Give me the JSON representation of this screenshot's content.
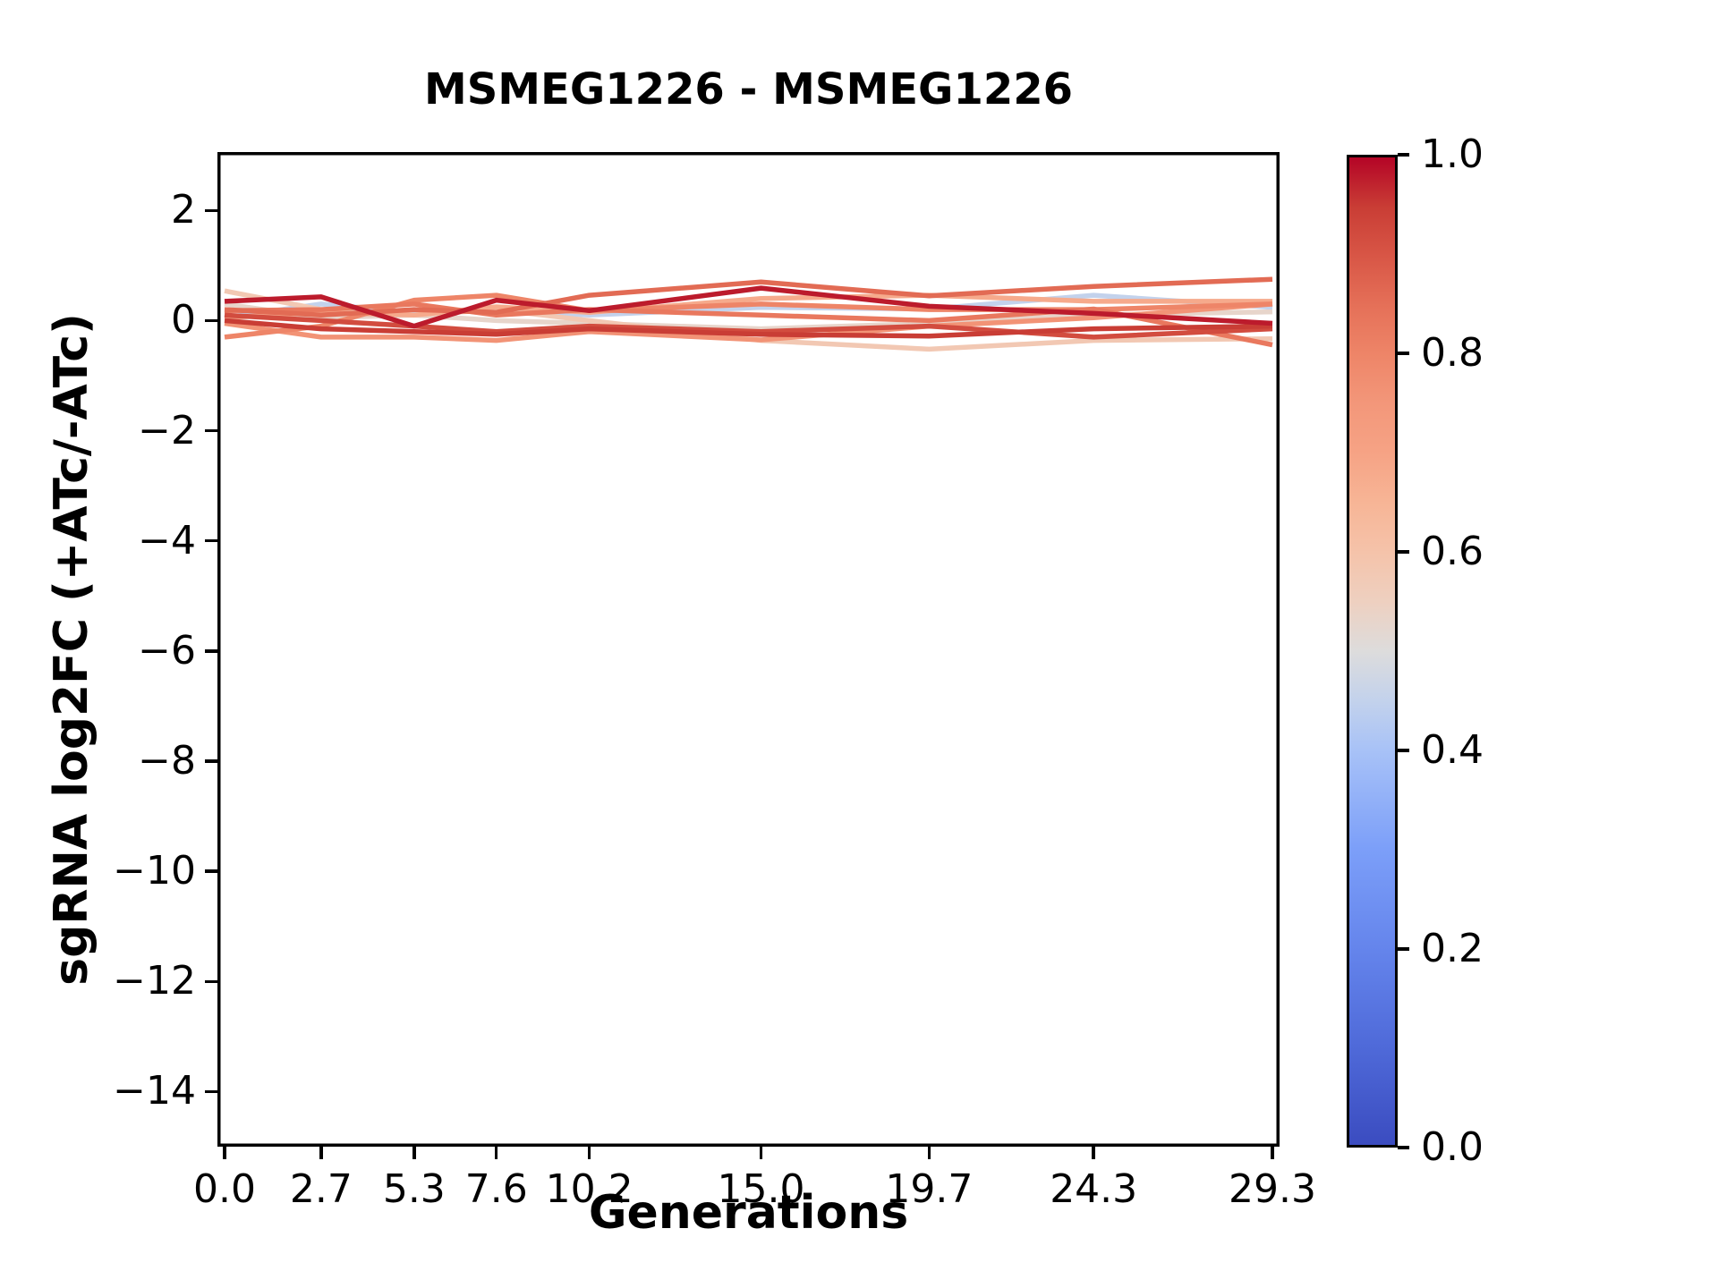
{
  "chart_data": {
    "type": "line",
    "title": "MSMEG1226 - MSMEG1226",
    "xlabel": "Generations",
    "ylabel": "sgRNA log2FC (+ATc/-ATc)",
    "x": [
      0.0,
      2.7,
      5.3,
      7.6,
      10.2,
      15.0,
      19.7,
      24.3,
      29.3
    ],
    "xlim": [
      -0.2,
      29.5
    ],
    "ylim": [
      -15.0,
      3.06
    ],
    "grid": false,
    "legend": "none",
    "colormap": "coolwarm",
    "x_tick_labels": [
      "0.0",
      "2.7",
      "5.3",
      "7.6",
      "10.2",
      "15.0",
      "19.7",
      "24.3",
      "29.3"
    ],
    "x_tick_values": [
      0.0,
      2.7,
      5.3,
      7.6,
      10.2,
      15.0,
      19.7,
      24.3,
      29.3
    ],
    "y_tick_labels": [
      "2",
      "0",
      "−2",
      "−4",
      "−6",
      "−8",
      "−10",
      "−12",
      "−14"
    ],
    "y_tick_values": [
      2,
      0,
      -2,
      -4,
      -6,
      -8,
      -10,
      -12,
      -14
    ],
    "series": [
      {
        "color_value": 0.45,
        "values": [
          0.05,
          0.3,
          0.15,
          0.2,
          0.1,
          0.24,
          0.21,
          0.46,
          0.24
        ]
      },
      {
        "color_value": 0.53,
        "values": [
          0.3,
          0.05,
          0.1,
          0.0,
          -0.05,
          -0.15,
          -0.05,
          0.1,
          0.16
        ]
      },
      {
        "color_value": 0.58,
        "values": [
          0.54,
          0.2,
          0.1,
          0.2,
          0.0,
          -0.36,
          -0.52,
          -0.36,
          -0.33
        ]
      },
      {
        "color_value": 0.68,
        "values": [
          0.05,
          0.15,
          0.1,
          0.25,
          0.15,
          0.4,
          0.46,
          0.35,
          0.35
        ]
      },
      {
        "color_value": 0.76,
        "values": [
          -0.05,
          -0.3,
          -0.3,
          -0.36,
          -0.2,
          -0.35,
          -0.1,
          0.05,
          0.3
        ]
      },
      {
        "color_value": 0.8,
        "values": [
          -0.3,
          -0.1,
          0.37,
          0.46,
          0.18,
          0.3,
          0.2,
          0.2,
          0.3
        ]
      },
      {
        "color_value": 0.83,
        "values": [
          0.18,
          0.2,
          0.3,
          0.1,
          0.2,
          0.1,
          0.0,
          0.21,
          -0.44
        ]
      },
      {
        "color_value": 0.86,
        "values": [
          0.2,
          0.1,
          0.2,
          0.15,
          0.46,
          0.7,
          0.45,
          0.62,
          0.75
        ]
      },
      {
        "color_value": 0.92,
        "values": [
          0.1,
          0.0,
          -0.1,
          -0.2,
          -0.1,
          -0.2,
          -0.1,
          -0.3,
          -0.15
        ]
      },
      {
        "color_value": 0.95,
        "values": [
          0.0,
          -0.15,
          -0.2,
          -0.25,
          -0.15,
          -0.25,
          -0.28,
          -0.15,
          -0.1
        ]
      },
      {
        "color_value": 0.98,
        "values": [
          0.35,
          0.43,
          -0.1,
          0.37,
          0.18,
          0.59,
          0.26,
          0.13,
          -0.05
        ]
      }
    ],
    "colorbar": {
      "range": [
        0.0,
        1.0
      ],
      "tick_labels": [
        "1.0",
        "0.8",
        "0.6",
        "0.4",
        "0.2",
        "0.0"
      ],
      "tick_values": [
        1.0,
        0.8,
        0.6,
        0.4,
        0.2,
        0.0
      ]
    }
  },
  "colors": {
    "background": "#ffffff",
    "spine": "#000000",
    "text": "#000000"
  }
}
